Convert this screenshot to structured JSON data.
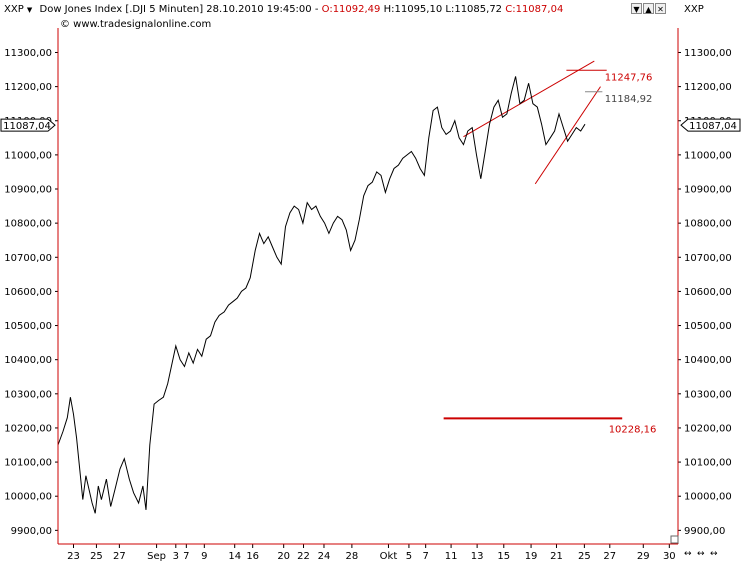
{
  "header": {
    "symbol": "XXP",
    "dropdown_glyph": "▼",
    "title": "Dow Jones Index [.DJI  5 Minuten] 28.10.2010 19:45:00 -",
    "o": "O:11092,49",
    "h": "H:11095,10",
    "l": "L:11085,72",
    "c": "C:11087,04",
    "source": "© www.tradesignalonline.com",
    "right_symbol": "XXP"
  },
  "window_buttons": [
    "▼",
    "▲",
    "✕",
    "✕"
  ],
  "bottom_controls": [
    "↔",
    "↔",
    "↔"
  ],
  "colors": {
    "price": "#000000",
    "annotation": "#cc0000",
    "gray_label": "#444444",
    "axis": "#cc0000",
    "background": "#ffffff"
  },
  "chart_data": {
    "type": "line",
    "ylim": [
      9860,
      11360
    ],
    "y_ticks": [
      9900,
      10000,
      10100,
      10200,
      10300,
      10400,
      10500,
      10600,
      10700,
      10800,
      10900,
      11000,
      11100,
      11200,
      11300
    ],
    "y_tick_labels": [
      "9900,00",
      "10000,00",
      "10100,00",
      "10200,00",
      "10300,00",
      "10400,00",
      "10500,00",
      "10600,00",
      "10700,00",
      "10800,00",
      "10900,00",
      "11000,00",
      "11100,00",
      "11200,00",
      "11300,00"
    ],
    "last_price": 11087.04,
    "last_price_label": "11087,04",
    "x_ticks": [
      {
        "label": "23",
        "pos": 0.025
      },
      {
        "label": "25",
        "pos": 0.062
      },
      {
        "label": "27",
        "pos": 0.099
      },
      {
        "label": "Sep",
        "pos": 0.159
      },
      {
        "label": "3",
        "pos": 0.19
      },
      {
        "label": "7",
        "pos": 0.207
      },
      {
        "label": "9",
        "pos": 0.236
      },
      {
        "label": "14",
        "pos": 0.285
      },
      {
        "label": "16",
        "pos": 0.314
      },
      {
        "label": "20",
        "pos": 0.364
      },
      {
        "label": "22",
        "pos": 0.396
      },
      {
        "label": "24",
        "pos": 0.429
      },
      {
        "label": "28",
        "pos": 0.474
      },
      {
        "label": "Okt",
        "pos": 0.533
      },
      {
        "label": "5",
        "pos": 0.566
      },
      {
        "label": "7",
        "pos": 0.593
      },
      {
        "label": "11",
        "pos": 0.634
      },
      {
        "label": "13",
        "pos": 0.676
      },
      {
        "label": "15",
        "pos": 0.719
      },
      {
        "label": "19",
        "pos": 0.763
      },
      {
        "label": "21",
        "pos": 0.804
      },
      {
        "label": "25",
        "pos": 0.849
      },
      {
        "label": "27",
        "pos": 0.89
      },
      {
        "label": "29",
        "pos": 0.944
      },
      {
        "label": "30",
        "pos": 0.986
      }
    ],
    "series": [
      {
        "points": [
          [
            0.0,
            10150
          ],
          [
            0.008,
            10190
          ],
          [
            0.015,
            10230
          ],
          [
            0.02,
            10290
          ],
          [
            0.025,
            10240
          ],
          [
            0.03,
            10170
          ],
          [
            0.035,
            10080
          ],
          [
            0.04,
            9990
          ],
          [
            0.045,
            10060
          ],
          [
            0.05,
            10020
          ],
          [
            0.055,
            9980
          ],
          [
            0.06,
            9950
          ],
          [
            0.065,
            10030
          ],
          [
            0.07,
            9990
          ],
          [
            0.078,
            10050
          ],
          [
            0.085,
            9970
          ],
          [
            0.092,
            10020
          ],
          [
            0.1,
            10080
          ],
          [
            0.107,
            10110
          ],
          [
            0.115,
            10050
          ],
          [
            0.122,
            10010
          ],
          [
            0.13,
            9980
          ],
          [
            0.137,
            10030
          ],
          [
            0.142,
            9960
          ],
          [
            0.148,
            10150
          ],
          [
            0.155,
            10270
          ],
          [
            0.162,
            10280
          ],
          [
            0.17,
            10290
          ],
          [
            0.177,
            10330
          ],
          [
            0.184,
            10390
          ],
          [
            0.19,
            10440
          ],
          [
            0.197,
            10400
          ],
          [
            0.204,
            10380
          ],
          [
            0.211,
            10420
          ],
          [
            0.218,
            10390
          ],
          [
            0.225,
            10430
          ],
          [
            0.232,
            10410
          ],
          [
            0.239,
            10460
          ],
          [
            0.246,
            10470
          ],
          [
            0.253,
            10510
          ],
          [
            0.26,
            10530
          ],
          [
            0.268,
            10540
          ],
          [
            0.275,
            10560
          ],
          [
            0.282,
            10570
          ],
          [
            0.289,
            10580
          ],
          [
            0.296,
            10600
          ],
          [
            0.303,
            10610
          ],
          [
            0.31,
            10640
          ],
          [
            0.318,
            10720
          ],
          [
            0.325,
            10770
          ],
          [
            0.332,
            10740
          ],
          [
            0.339,
            10760
          ],
          [
            0.346,
            10730
          ],
          [
            0.353,
            10700
          ],
          [
            0.36,
            10680
          ],
          [
            0.367,
            10790
          ],
          [
            0.374,
            10830
          ],
          [
            0.381,
            10850
          ],
          [
            0.388,
            10840
          ],
          [
            0.395,
            10800
          ],
          [
            0.402,
            10860
          ],
          [
            0.409,
            10840
          ],
          [
            0.416,
            10850
          ],
          [
            0.423,
            10820
          ],
          [
            0.43,
            10800
          ],
          [
            0.437,
            10770
          ],
          [
            0.444,
            10800
          ],
          [
            0.451,
            10820
          ],
          [
            0.458,
            10810
          ],
          [
            0.465,
            10780
          ],
          [
            0.472,
            10720
          ],
          [
            0.479,
            10750
          ],
          [
            0.486,
            10810
          ],
          [
            0.493,
            10880
          ],
          [
            0.5,
            10910
          ],
          [
            0.507,
            10920
          ],
          [
            0.514,
            10950
          ],
          [
            0.521,
            10940
          ],
          [
            0.528,
            10890
          ],
          [
            0.535,
            10930
          ],
          [
            0.542,
            10960
          ],
          [
            0.549,
            10970
          ],
          [
            0.556,
            10990
          ],
          [
            0.563,
            11000
          ],
          [
            0.57,
            11010
          ],
          [
            0.577,
            10990
          ],
          [
            0.584,
            10960
          ],
          [
            0.591,
            10940
          ],
          [
            0.598,
            11050
          ],
          [
            0.605,
            11130
          ],
          [
            0.612,
            11140
          ],
          [
            0.619,
            11080
          ],
          [
            0.626,
            11060
          ],
          [
            0.633,
            11070
          ],
          [
            0.64,
            11100
          ],
          [
            0.647,
            11050
          ],
          [
            0.654,
            11030
          ],
          [
            0.661,
            11070
          ],
          [
            0.668,
            11080
          ],
          [
            0.675,
            11000
          ],
          [
            0.682,
            10930
          ],
          [
            0.689,
            11010
          ],
          [
            0.696,
            11090
          ],
          [
            0.703,
            11140
          ],
          [
            0.71,
            11160
          ],
          [
            0.717,
            11110
          ],
          [
            0.724,
            11120
          ],
          [
            0.731,
            11180
          ],
          [
            0.738,
            11230
          ],
          [
            0.745,
            11150
          ],
          [
            0.752,
            11160
          ],
          [
            0.759,
            11210
          ],
          [
            0.766,
            11150
          ],
          [
            0.773,
            11140
          ],
          [
            0.78,
            11090
          ],
          [
            0.787,
            11030
          ],
          [
            0.794,
            11050
          ],
          [
            0.801,
            11070
          ],
          [
            0.808,
            11120
          ],
          [
            0.815,
            11080
          ],
          [
            0.822,
            11040
          ],
          [
            0.829,
            11060
          ],
          [
            0.836,
            11080
          ],
          [
            0.843,
            11070
          ],
          [
            0.85,
            11090
          ]
        ]
      }
    ],
    "annotations": [
      {
        "label": "11247,76",
        "value": 11247.76
      },
      {
        "label": "11184,92",
        "value": 11184.92
      },
      {
        "label": "10228,16",
        "value": 10228.16
      }
    ]
  }
}
